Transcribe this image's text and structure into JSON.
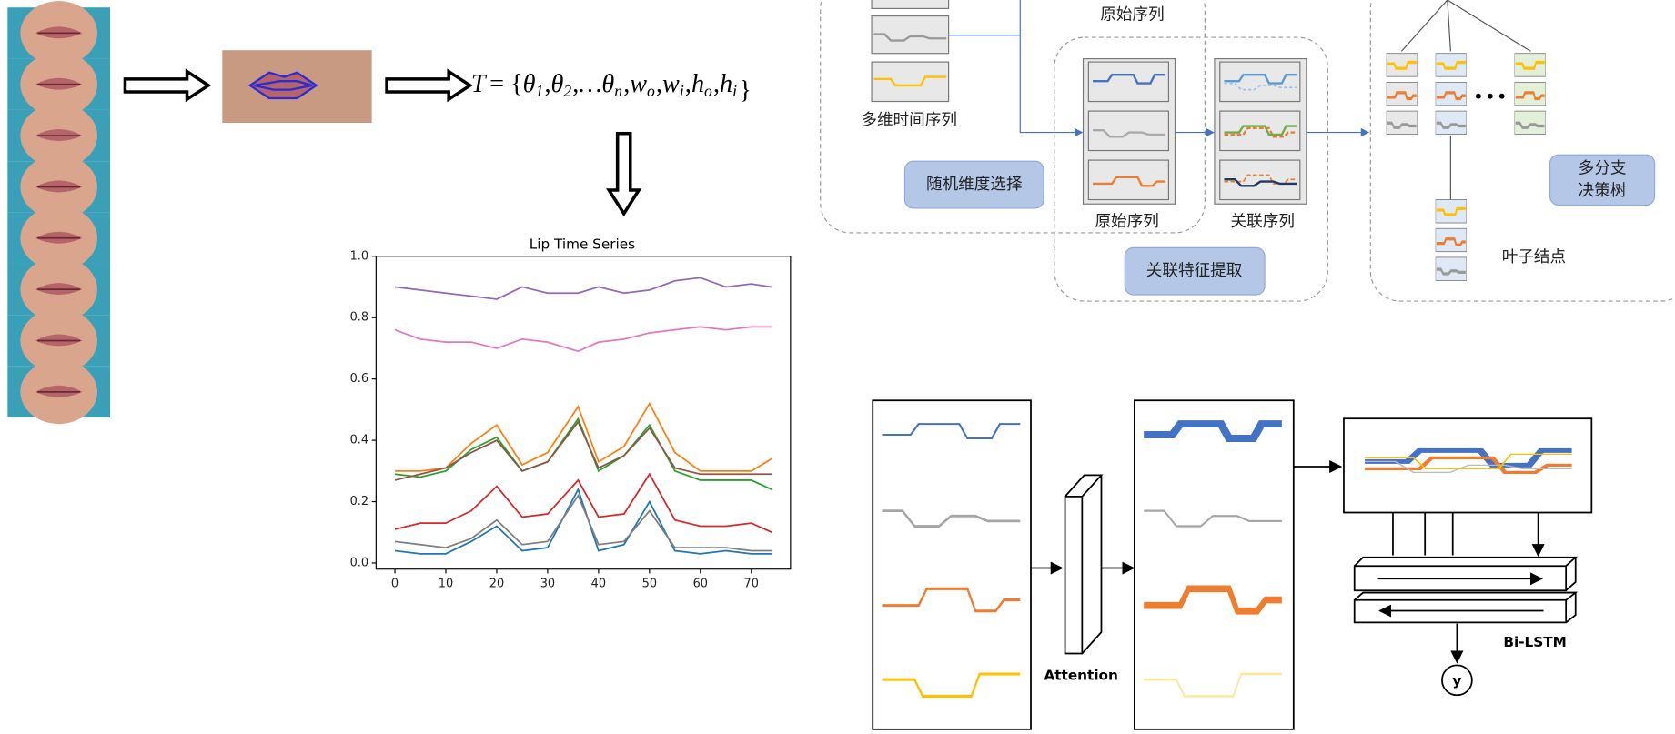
{
  "formula": {
    "lhs": "T",
    "eq": "=",
    "open": "{",
    "sep": ",",
    "close": "}",
    "terms": [
      {
        "base": "θ",
        "sub": "1"
      },
      {
        "base": "θ",
        "sub": "2"
      },
      {
        "base": "…θ",
        "sub": "n"
      },
      {
        "base": "w",
        "sub": "o"
      },
      {
        "base": "w",
        "sub": "i"
      },
      {
        "base": "h",
        "sub": "o"
      },
      {
        "base": "h",
        "sub": "i"
      }
    ]
  },
  "lip_chart": {
    "type": "line",
    "title": "Lip Time Series",
    "x": [
      0,
      5,
      10,
      15,
      20,
      25,
      30,
      36,
      40,
      45,
      50,
      55,
      60,
      65,
      70,
      74
    ],
    "xlim": [
      -3.7,
      77.7
    ],
    "ylim": [
      -0.02,
      1.0
    ],
    "xticks": [
      0,
      10,
      20,
      30,
      40,
      50,
      60,
      70
    ],
    "yticks": [
      {
        "value": 0,
        "label": "0.0"
      },
      {
        "value": 0.2,
        "label": "0.2"
      },
      {
        "value": 0.4,
        "label": "0.4"
      },
      {
        "value": 0.6,
        "label": "0.6"
      },
      {
        "value": 0.8,
        "label": "0.8"
      },
      {
        "value": 1,
        "label": "1.0"
      }
    ],
    "series": [
      {
        "color": "#9467bd",
        "values": [
          0.9,
          0.89,
          0.88,
          0.87,
          0.86,
          0.9,
          0.88,
          0.88,
          0.9,
          0.88,
          0.89,
          0.92,
          0.93,
          0.9,
          0.91,
          0.9
        ]
      },
      {
        "color": "#e377c2",
        "values": [
          0.76,
          0.73,
          0.72,
          0.72,
          0.7,
          0.73,
          0.72,
          0.69,
          0.72,
          0.73,
          0.75,
          0.76,
          0.77,
          0.76,
          0.77,
          0.77
        ]
      },
      {
        "color": "#ff7f0e",
        "values": [
          0.3,
          0.3,
          0.31,
          0.39,
          0.45,
          0.32,
          0.36,
          0.51,
          0.33,
          0.38,
          0.52,
          0.36,
          0.3,
          0.3,
          0.3,
          0.34
        ]
      },
      {
        "color": "#2ca02c",
        "values": [
          0.29,
          0.28,
          0.3,
          0.37,
          0.41,
          0.3,
          0.33,
          0.47,
          0.3,
          0.35,
          0.45,
          0.3,
          0.27,
          0.27,
          0.27,
          0.24
        ]
      },
      {
        "color": "#8c564b",
        "values": [
          0.27,
          0.29,
          0.31,
          0.36,
          0.4,
          0.3,
          0.33,
          0.46,
          0.31,
          0.35,
          0.44,
          0.31,
          0.29,
          0.29,
          0.29,
          0.29
        ]
      },
      {
        "color": "#d62728",
        "values": [
          0.11,
          0.13,
          0.13,
          0.17,
          0.25,
          0.15,
          0.16,
          0.27,
          0.15,
          0.16,
          0.29,
          0.14,
          0.12,
          0.12,
          0.13,
          0.1
        ]
      },
      {
        "color": "#1f77b4",
        "values": [
          0.04,
          0.03,
          0.03,
          0.07,
          0.12,
          0.04,
          0.05,
          0.24,
          0.04,
          0.06,
          0.2,
          0.04,
          0.03,
          0.04,
          0.03,
          0.03
        ]
      },
      {
        "color": "#7f7f7f",
        "values": [
          0.07,
          0.06,
          0.05,
          0.08,
          0.14,
          0.06,
          0.07,
          0.22,
          0.06,
          0.07,
          0.17,
          0.05,
          0.05,
          0.05,
          0.04,
          0.04
        ]
      }
    ]
  },
  "tree_panel": {
    "top_label": "原始序列",
    "multi_series_label": "多维时间序列",
    "random_dim_button": "随机维度选择",
    "original_label": "原始序列",
    "related_label": "关联序列",
    "feature_button": "关联特征提取",
    "tree_button": [
      "多分支",
      "决策树"
    ],
    "leaf_label": "叶子结点"
  },
  "attention_panel": {
    "attention_label": "Attention",
    "bilstm_label": "Bi-LSTM",
    "output_label": "y"
  }
}
